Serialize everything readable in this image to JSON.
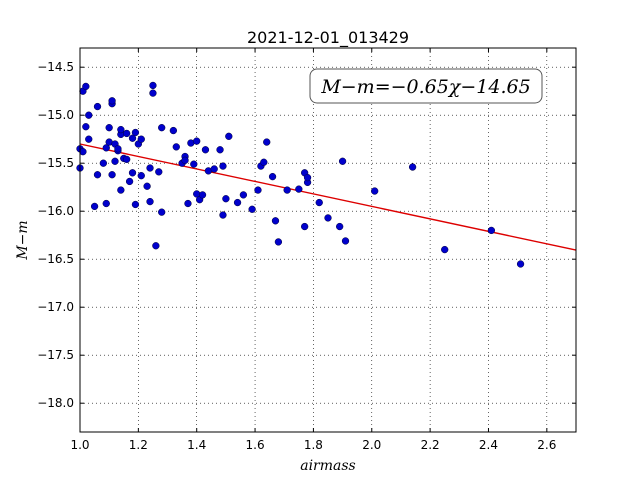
{
  "chart_data": {
    "type": "scatter",
    "title": "2021-12-01_013429",
    "xlabel": "airmass",
    "ylabel": "M−m",
    "xlim": [
      1.0,
      2.7
    ],
    "ylim": [
      -18.3,
      -14.3
    ],
    "x_ticks": [
      1.0,
      1.2,
      1.4,
      1.6,
      1.8,
      2.0,
      2.2,
      2.4,
      2.6
    ],
    "x_tick_labels": [
      "1.0",
      "1.2",
      "1.4",
      "1.6",
      "1.8",
      "2.0",
      "2.2",
      "2.4",
      "2.6"
    ],
    "y_ticks": [
      -14.5,
      -15.0,
      -15.5,
      -16.0,
      -16.5,
      -17.0,
      -17.5,
      -18.0
    ],
    "y_tick_labels": [
      "−14.5",
      "−15.0",
      "−15.5",
      "−16.0",
      "−16.5",
      "−17.0",
      "−17.5",
      "−18.0"
    ],
    "grid": true,
    "annotation": "M−m=−0.65χ−14.65",
    "point_color": "#0000cc",
    "fit_color": "#dd0000",
    "series": [
      {
        "values": [
          [
            1.0,
            -15.35
          ],
          [
            1.0,
            -15.55
          ],
          [
            1.01,
            -15.38
          ],
          [
            1.01,
            -14.75
          ],
          [
            1.02,
            -14.7
          ],
          [
            1.02,
            -15.12
          ],
          [
            1.03,
            -15.25
          ],
          [
            1.03,
            -15.0
          ],
          [
            1.05,
            -15.95
          ],
          [
            1.06,
            -15.62
          ],
          [
            1.06,
            -14.91
          ],
          [
            1.08,
            -15.5
          ],
          [
            1.09,
            -15.92
          ],
          [
            1.09,
            -15.34
          ],
          [
            1.1,
            -15.13
          ],
          [
            1.1,
            -15.28
          ],
          [
            1.11,
            -14.88
          ],
          [
            1.11,
            -14.85
          ],
          [
            1.11,
            -15.62
          ],
          [
            1.12,
            -15.48
          ],
          [
            1.12,
            -15.3
          ],
          [
            1.13,
            -15.37
          ],
          [
            1.13,
            -15.35
          ],
          [
            1.14,
            -15.2
          ],
          [
            1.14,
            -15.78
          ],
          [
            1.14,
            -15.15
          ],
          [
            1.15,
            -15.45
          ],
          [
            1.16,
            -15.19
          ],
          [
            1.16,
            -15.46
          ],
          [
            1.17,
            -15.69
          ],
          [
            1.18,
            -15.24
          ],
          [
            1.18,
            -15.6
          ],
          [
            1.19,
            -15.93
          ],
          [
            1.19,
            -15.18
          ],
          [
            1.2,
            -15.3
          ],
          [
            1.21,
            -15.25
          ],
          [
            1.21,
            -15.63
          ],
          [
            1.23,
            -15.74
          ],
          [
            1.24,
            -15.55
          ],
          [
            1.24,
            -15.9
          ],
          [
            1.25,
            -14.69
          ],
          [
            1.25,
            -14.77
          ],
          [
            1.26,
            -16.36
          ],
          [
            1.27,
            -15.59
          ],
          [
            1.28,
            -16.01
          ],
          [
            1.28,
            -15.13
          ],
          [
            1.32,
            -15.16
          ],
          [
            1.33,
            -15.33
          ],
          [
            1.35,
            -15.5
          ],
          [
            1.36,
            -15.43
          ],
          [
            1.36,
            -15.47
          ],
          [
            1.37,
            -15.92
          ],
          [
            1.38,
            -15.29
          ],
          [
            1.39,
            -15.51
          ],
          [
            1.4,
            -15.27
          ],
          [
            1.4,
            -15.82
          ],
          [
            1.41,
            -15.88
          ],
          [
            1.42,
            -15.83
          ],
          [
            1.43,
            -15.36
          ],
          [
            1.44,
            -15.58
          ],
          [
            1.46,
            -15.56
          ],
          [
            1.48,
            -15.36
          ],
          [
            1.49,
            -15.53
          ],
          [
            1.49,
            -16.04
          ],
          [
            1.5,
            -15.87
          ],
          [
            1.51,
            -15.22
          ],
          [
            1.54,
            -15.91
          ],
          [
            1.56,
            -15.83
          ],
          [
            1.59,
            -15.98
          ],
          [
            1.61,
            -15.78
          ],
          [
            1.62,
            -15.53
          ],
          [
            1.63,
            -15.49
          ],
          [
            1.64,
            -15.28
          ],
          [
            1.66,
            -15.64
          ],
          [
            1.67,
            -16.1
          ],
          [
            1.68,
            -16.32
          ],
          [
            1.71,
            -15.78
          ],
          [
            1.75,
            -15.77
          ],
          [
            1.77,
            -15.6
          ],
          [
            1.77,
            -16.16
          ],
          [
            1.78,
            -15.7
          ],
          [
            1.78,
            -15.65
          ],
          [
            1.82,
            -15.91
          ],
          [
            1.85,
            -16.07
          ],
          [
            1.89,
            -16.16
          ],
          [
            1.9,
            -15.48
          ],
          [
            1.91,
            -16.31
          ],
          [
            2.01,
            -15.79
          ],
          [
            2.14,
            -15.54
          ],
          [
            2.25,
            -16.4
          ],
          [
            2.41,
            -16.2
          ],
          [
            2.51,
            -16.55
          ]
        ]
      }
    ],
    "fit_line": {
      "slope": -0.65,
      "intercept": -14.65
    }
  }
}
